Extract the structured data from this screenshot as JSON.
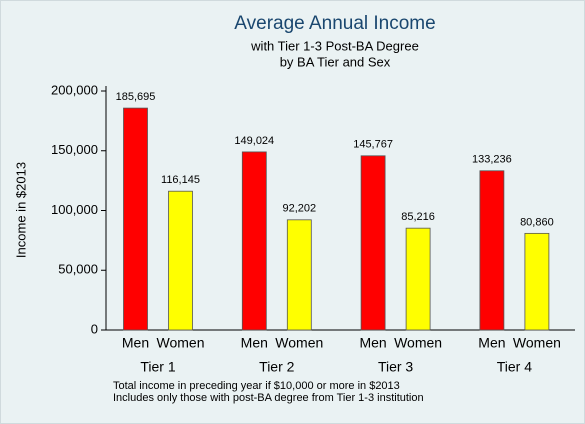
{
  "chart_data": {
    "type": "bar",
    "title": "Average Annual Income",
    "subtitle": [
      "with Tier 1-3 Post-BA Degree",
      "by BA Tier and Sex"
    ],
    "y_label": "Income in $2013",
    "notes": [
      "Total income in preceding year if $10,000 or more in $2013",
      "Includes only those with post-BA degree from Tier 1-3 institution"
    ],
    "categories": [
      "Tier 1",
      "Tier 2",
      "Tier 3",
      "Tier 4"
    ],
    "series": [
      {
        "name": "Men",
        "color": "#ff0000",
        "values": [
          185695,
          149024,
          145767,
          133236
        ],
        "value_labels": [
          "185,695",
          "149,024",
          "145,767",
          "133,236"
        ]
      },
      {
        "name": "Women",
        "color": "#ffff00",
        "values": [
          116145,
          92202,
          85216,
          80860
        ],
        "value_labels": [
          "116,145",
          "92,202",
          "85,216",
          "80,860"
        ]
      }
    ],
    "ylim": [
      0,
      200000
    ],
    "yticks": [
      0,
      {
        "value": 50000,
        "label": "50,000"
      },
      {
        "value": 100000,
        "label": "100,000"
      },
      {
        "value": 150000,
        "label": "150,000"
      },
      {
        "value": 200000,
        "label": "200,000"
      }
    ]
  }
}
